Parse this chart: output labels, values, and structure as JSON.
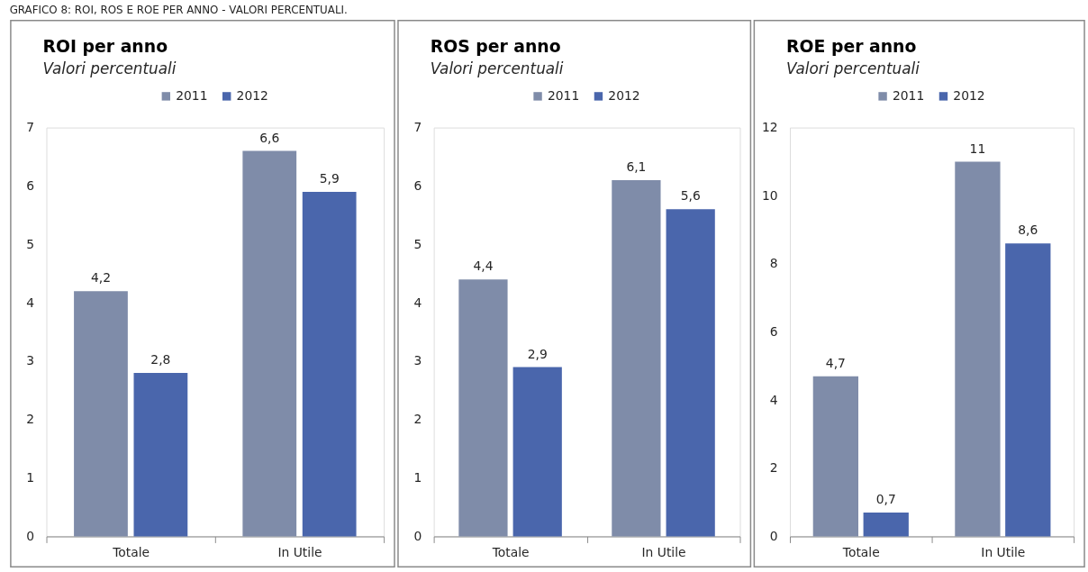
{
  "chart_data": [
    {
      "type": "bar",
      "title": "ROI per anno",
      "subtitle": "Valori percentuali",
      "annotations": [
        "GRAFICO 8: ROI, ROS E ROE PER ANNO - VALORI PERCENTUALI."
      ],
      "categories": [
        "Totale",
        "In Utile"
      ],
      "series": [
        {
          "name": "2011",
          "color": "#7f8ca9",
          "values": [
            4.2,
            6.6
          ],
          "value_labels": [
            "4,2",
            "6,6"
          ]
        },
        {
          "name": "2012",
          "color": "#4a66ac",
          "values": [
            2.8,
            5.9
          ],
          "value_labels": [
            "2,8",
            "5,9"
          ]
        }
      ],
      "ylim": [
        0,
        7
      ],
      "yticks": [
        0,
        1,
        2,
        3,
        4,
        5,
        6,
        7
      ],
      "legend": "top"
    },
    {
      "type": "bar",
      "title": "ROS per anno",
      "subtitle": "Valori percentuali",
      "categories": [
        "Totale",
        "In Utile"
      ],
      "series": [
        {
          "name": "2011",
          "color": "#7f8ca9",
          "values": [
            4.4,
            6.1
          ],
          "value_labels": [
            "4,4",
            "6,1"
          ]
        },
        {
          "name": "2012",
          "color": "#4a66ac",
          "values": [
            2.9,
            5.6
          ],
          "value_labels": [
            "2,9",
            "5,6"
          ]
        }
      ],
      "ylim": [
        0,
        7
      ],
      "yticks": [
        0,
        1,
        2,
        3,
        4,
        5,
        6,
        7
      ],
      "legend": "top"
    },
    {
      "type": "bar",
      "title": "ROE per anno",
      "subtitle": "Valori percentuali",
      "categories": [
        "Totale",
        "In Utile"
      ],
      "series": [
        {
          "name": "2011",
          "color": "#7f8ca9",
          "values": [
            4.7,
            11
          ],
          "value_labels": [
            "4,7",
            "11"
          ]
        },
        {
          "name": "2012",
          "color": "#4a66ac",
          "values": [
            0.7,
            8.6
          ],
          "value_labels": [
            "0,7",
            "8,6"
          ]
        }
      ],
      "ylim": [
        0,
        12
      ],
      "yticks": [
        0,
        2,
        4,
        6,
        8,
        10,
        12
      ],
      "legend": "top"
    }
  ]
}
